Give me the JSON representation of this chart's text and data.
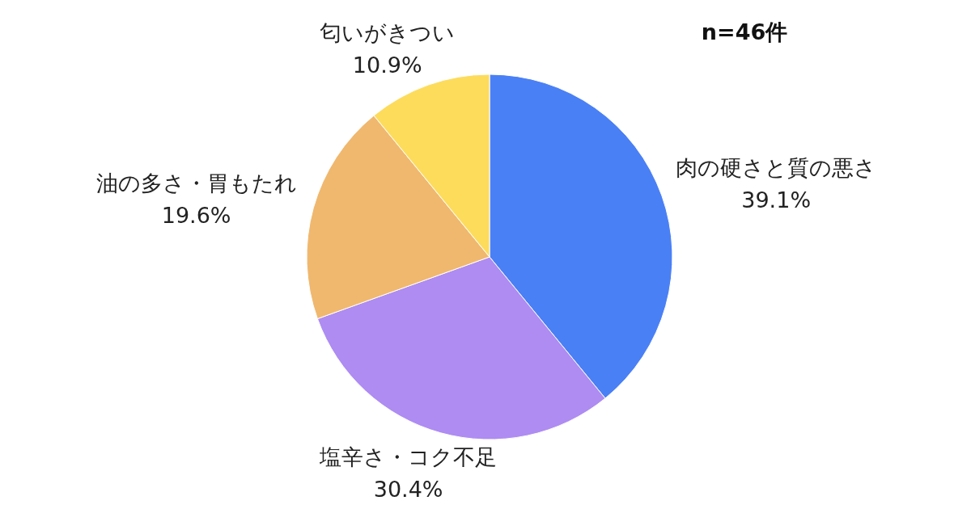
{
  "chart_data": {
    "type": "pie",
    "subtitle": "n=46件",
    "categories": [
      "肉の硬さと質の悪さ",
      "塩辛さ・コク不足",
      "油の多さ・胃もたれ",
      "匂いがきつい"
    ],
    "values": [
      39.1,
      30.4,
      19.6,
      10.9
    ],
    "value_labels": [
      "39.1%",
      "30.4%",
      "19.6%",
      "10.9%"
    ],
    "colors": [
      "#4a80f5",
      "#ae8cf2",
      "#f0b86e",
      "#fddc5c"
    ],
    "legend": false
  }
}
